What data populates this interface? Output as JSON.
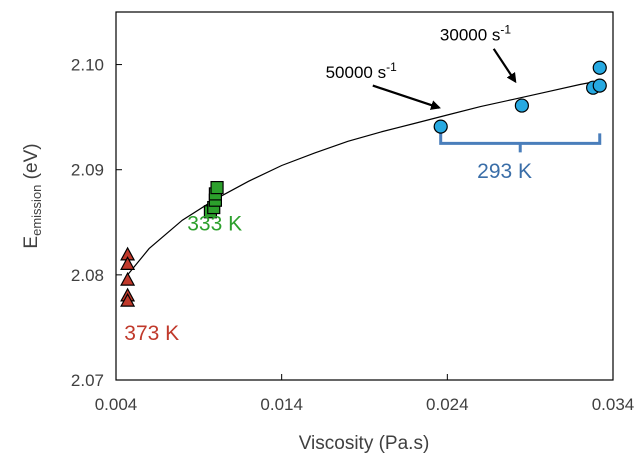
{
  "chart_data": {
    "type": "scatter",
    "title": "",
    "xlabel": "Viscosity (Pa.s)",
    "ylabel": {
      "main": "E",
      "subscript": "emission",
      "suffix": " (eV)"
    },
    "xlim": [
      0.004,
      0.034
    ],
    "ylim": [
      2.07,
      2.105
    ],
    "x_ticks": [
      0.004,
      0.014,
      0.024,
      0.034
    ],
    "x_tick_labels": [
      "0.004",
      "0.014",
      "0.024",
      "0.034"
    ],
    "y_ticks": [
      2.07,
      2.08,
      2.09,
      2.1
    ],
    "y_tick_labels": [
      "2.07",
      "2.08",
      "2.09",
      "2.10"
    ],
    "grid": false,
    "legend": "none",
    "series": [
      {
        "label": "373 K",
        "marker": "triangle",
        "color": "#c0392b",
        "label_color": "#c0392b",
        "x": [
          0.0047,
          0.0047,
          0.0047,
          0.0047,
          0.0047
        ],
        "y": [
          2.0819,
          2.081,
          2.0795,
          2.078,
          2.0775
        ]
      },
      {
        "label": "333 K",
        "marker": "square",
        "color": "#2ca02c",
        "label_color": "#2ca02c",
        "x": [
          0.0097,
          0.0099,
          0.01,
          0.01,
          0.0101
        ],
        "y": [
          2.086,
          2.0864,
          2.0871,
          2.0877,
          2.0883
        ]
      },
      {
        "label": "293 K",
        "marker": "circle",
        "color": "#27a9e1",
        "label_color": "#3a6ea8",
        "x": [
          0.0236,
          0.0285,
          0.0328,
          0.0332,
          0.0332
        ],
        "y": [
          2.0941,
          2.0961,
          2.0978,
          2.098,
          2.0997
        ]
      }
    ],
    "fit_curve": {
      "x": [
        0.0047,
        0.006,
        0.008,
        0.01,
        0.012,
        0.014,
        0.016,
        0.018,
        0.02,
        0.022,
        0.024,
        0.026,
        0.028,
        0.03,
        0.032,
        0.033
      ],
      "y": [
        2.08,
        2.0825,
        2.0852,
        2.0872,
        2.0889,
        2.0904,
        2.0916,
        2.0927,
        2.0936,
        2.0944,
        2.0952,
        2.096,
        2.0967,
        2.0974,
        2.0981,
        2.0984
      ]
    },
    "annotations": [
      {
        "text_main": "50000 s",
        "text_sup": "-1",
        "text_x": 0.0188,
        "text_y": 2.0987,
        "arrow_from": [
          0.0195,
          2.098
        ],
        "arrow_to": [
          0.0235,
          2.0959
        ]
      },
      {
        "text_main": "30000 s",
        "text_sup": "-1",
        "text_x": 0.0257,
        "text_y": 2.1023,
        "arrow_from": [
          0.0268,
          2.1015
        ],
        "arrow_to": [
          0.0281,
          2.0984
        ]
      }
    ],
    "bracket": {
      "x_start": 0.0236,
      "x_end": 0.0332,
      "y": 2.0925,
      "color": "#4a7ebb"
    },
    "group_labels": [
      {
        "text": "373 K",
        "x": 0.0045,
        "y": 2.0738,
        "color": "#c0392b"
      },
      {
        "text": "333 K",
        "x": 0.0083,
        "y": 2.0842,
        "color": "#2ca02c"
      },
      {
        "text": "293 K",
        "x": 0.0258,
        "y": 2.0892,
        "color": "#3a6ea8"
      }
    ]
  }
}
